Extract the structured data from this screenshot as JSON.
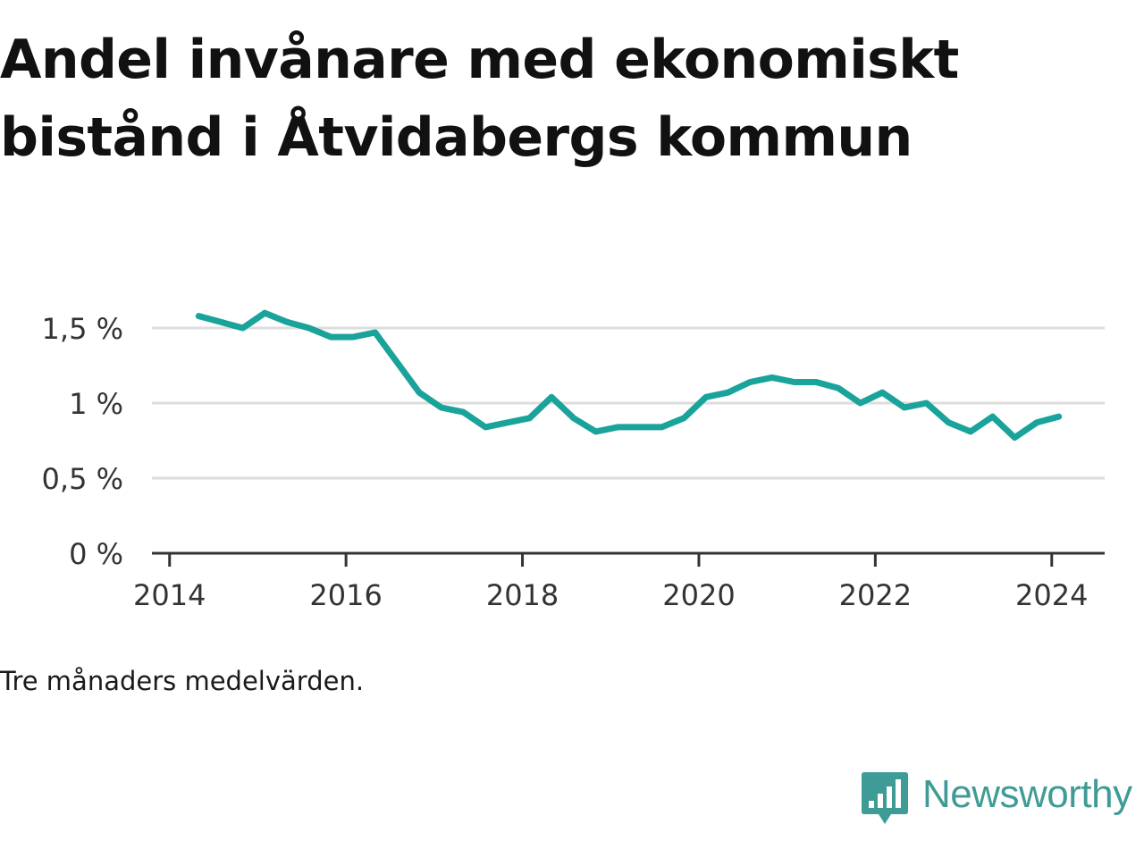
{
  "title": "Andel invånare med ekonomiskt bistånd i Åtvidabergs kommun",
  "note": "Tre månaders medelvärden.",
  "brand": {
    "name": "Newsworthy",
    "icon": "bar-chart-speech-bubble-icon",
    "color": "#3f9b95"
  },
  "colors": {
    "line": "#1aa39a",
    "grid": "#dddddd",
    "axis": "#333333"
  },
  "chart_data": {
    "type": "line",
    "title": "Andel invånare med ekonomiskt bistånd i Åtvidabergs kommun",
    "xlabel": "",
    "ylabel": "",
    "xlim": [
      2013.8,
      2024.6
    ],
    "ylim": [
      0,
      1.5
    ],
    "x_ticks": [
      2014,
      2016,
      2018,
      2020,
      2022,
      2024
    ],
    "x_tick_labels": [
      "2014",
      "2016",
      "2018",
      "2020",
      "2022",
      "2024"
    ],
    "y_ticks": [
      0,
      0.5,
      1,
      1.5
    ],
    "y_tick_labels": [
      "0 %",
      "0,5 %",
      "1 %",
      "1,5 %"
    ],
    "grid": true,
    "series": [
      {
        "x": [
          2014.33,
          2014.58,
          2014.83,
          2015.08,
          2015.33,
          2015.58,
          2015.83,
          2016.08,
          2016.33,
          2016.58,
          2016.83,
          2017.08,
          2017.33,
          2017.58,
          2017.83,
          2018.08,
          2018.33,
          2018.58,
          2018.83,
          2019.08,
          2019.33,
          2019.58,
          2019.83,
          2020.08,
          2020.33,
          2020.58,
          2020.83,
          2021.08,
          2021.33,
          2021.58,
          2021.83,
          2022.08,
          2022.33,
          2022.58,
          2022.83,
          2023.08,
          2023.33,
          2023.58,
          2023.83,
          2024.08
        ],
        "values": [
          1.58,
          1.54,
          1.5,
          1.6,
          1.54,
          1.5,
          1.44,
          1.44,
          1.47,
          1.27,
          1.07,
          0.97,
          0.94,
          0.84,
          0.87,
          0.9,
          1.04,
          0.9,
          0.81,
          0.84,
          0.84,
          0.84,
          0.9,
          1.04,
          1.07,
          1.14,
          1.17,
          1.14,
          1.14,
          1.1,
          1.0,
          1.07,
          0.97,
          1.0,
          0.87,
          0.81,
          0.91,
          0.77,
          0.87,
          0.91
        ]
      }
    ]
  }
}
